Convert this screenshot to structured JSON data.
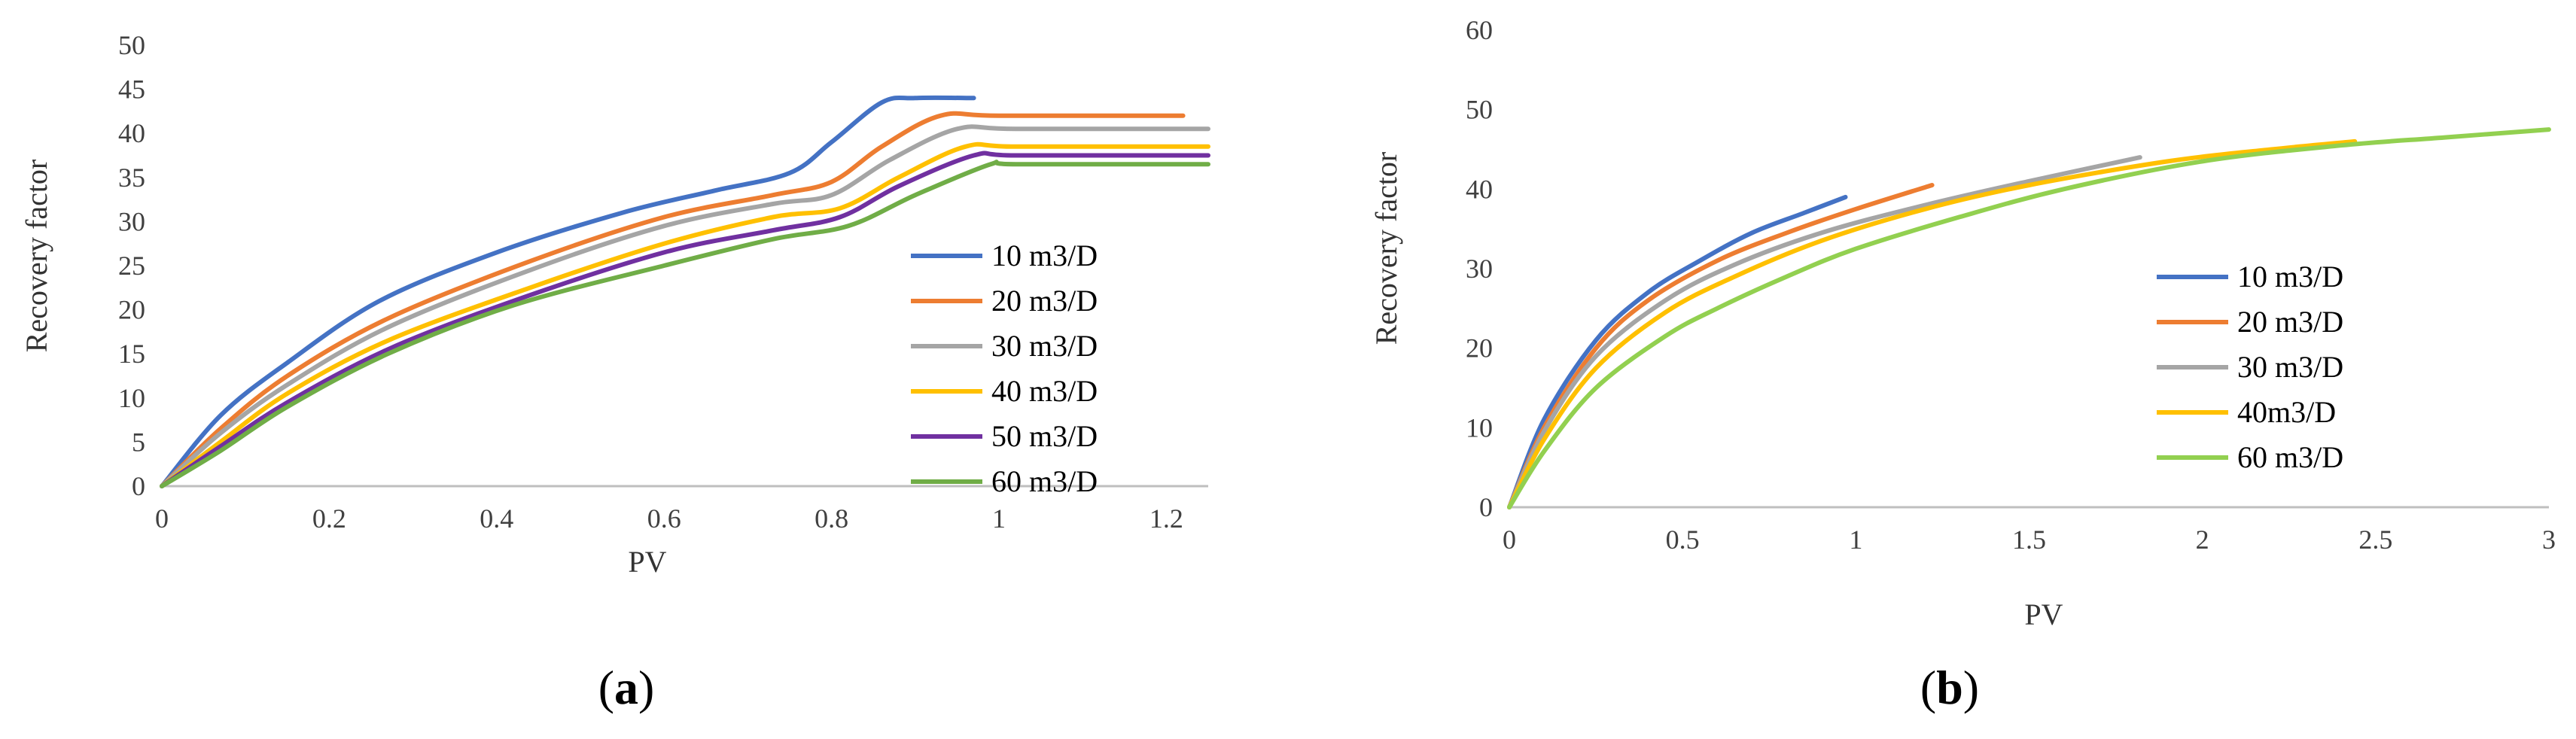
{
  "chart_data": [
    {
      "type": "line",
      "caption": "a",
      "xlabel": "PV",
      "ylabel": "Recovery factor",
      "xlim": [
        0,
        1.25
      ],
      "ylim": [
        0,
        50
      ],
      "xticks": [
        0,
        0.2,
        0.4,
        0.6,
        0.8,
        1,
        1.2
      ],
      "xtick_labels": [
        "0",
        "0.2",
        "0.4",
        "0.6",
        "0.8",
        "1",
        "1.2"
      ],
      "yticks": [
        0,
        5,
        10,
        15,
        20,
        25,
        30,
        35,
        40,
        45,
        50
      ],
      "ytick_labels": [
        "0",
        "5",
        "10",
        "15",
        "20",
        "25",
        "30",
        "35",
        "40",
        "45",
        "50"
      ],
      "legend_position": "right",
      "series": [
        {
          "name": "10 m3/D",
          "color": "#4472C4",
          "x": [
            0,
            0.07,
            0.15,
            0.26,
            0.4,
            0.55,
            0.66,
            0.75,
            0.8,
            0.86,
            0.9,
            0.97
          ],
          "y": [
            0,
            8,
            14,
            21,
            26.5,
            31,
            33.5,
            35.5,
            39,
            43.5,
            44,
            44
          ]
        },
        {
          "name": "20 m3/D",
          "color": "#ED7D31",
          "x": [
            0,
            0.07,
            0.15,
            0.27,
            0.44,
            0.6,
            0.73,
            0.8,
            0.86,
            0.93,
            1.0,
            1.22
          ],
          "y": [
            0,
            6.5,
            12.5,
            19,
            25.5,
            30.5,
            33,
            34.5,
            38.5,
            42,
            42,
            42
          ]
        },
        {
          "name": "30 m3/D",
          "color": "#A5A5A5",
          "x": [
            0,
            0.07,
            0.15,
            0.27,
            0.44,
            0.6,
            0.73,
            0.8,
            0.87,
            0.95,
            1.02,
            1.25
          ],
          "y": [
            0,
            6,
            11.5,
            18,
            24.5,
            29.5,
            32,
            33,
            37,
            40.5,
            40.5,
            40.5
          ]
        },
        {
          "name": "40 m3/D",
          "color": "#FFC000",
          "x": [
            0,
            0.07,
            0.15,
            0.27,
            0.44,
            0.6,
            0.73,
            0.81,
            0.88,
            0.96,
            1.02,
            1.25
          ],
          "y": [
            0,
            5,
            10.5,
            16.5,
            22.5,
            27.5,
            30.5,
            31.5,
            35,
            38.5,
            38.5,
            38.5
          ]
        },
        {
          "name": "50 m3/D",
          "color": "#7030A0",
          "x": [
            0,
            0.07,
            0.15,
            0.27,
            0.42,
            0.6,
            0.73,
            0.81,
            0.88,
            0.97,
            1.02,
            1.25
          ],
          "y": [
            0,
            4.5,
            9.5,
            15.5,
            21,
            26.5,
            29,
            30.5,
            34,
            37.5,
            37.5,
            37.5
          ]
        },
        {
          "name": "60 m3/D",
          "color": "#70AD47",
          "x": [
            0,
            0.07,
            0.15,
            0.27,
            0.42,
            0.6,
            0.73,
            0.82,
            0.9,
            0.99,
            1.02,
            1.25
          ],
          "y": [
            0,
            4,
            9,
            15,
            20.5,
            25,
            28,
            29.5,
            33,
            36.5,
            36.5,
            36.5
          ]
        }
      ]
    },
    {
      "type": "line",
      "caption": "b",
      "xlabel": "PV",
      "ylabel": "Recovery factor",
      "xlim": [
        0,
        3
      ],
      "ylim": [
        0,
        60
      ],
      "xticks": [
        0,
        0.5,
        1,
        1.5,
        2,
        2.5,
        3
      ],
      "xtick_labels": [
        "0",
        "0.5",
        "1",
        "1.5",
        "2",
        "2.5",
        "3"
      ],
      "yticks": [
        0,
        10,
        20,
        30,
        40,
        50,
        60
      ],
      "ytick_labels": [
        "0",
        "10",
        "20",
        "30",
        "40",
        "50",
        "60"
      ],
      "legend_position": "right",
      "series": [
        {
          "name": "10 m3/D",
          "color": "#4472C4",
          "x": [
            0,
            0.1,
            0.25,
            0.4,
            0.55,
            0.7,
            0.85,
            0.97
          ],
          "y": [
            0,
            11,
            21,
            27,
            31,
            34.5,
            37,
            39
          ]
        },
        {
          "name": "20 m3/D",
          "color": "#ED7D31",
          "x": [
            0,
            0.1,
            0.25,
            0.4,
            0.6,
            0.8,
            1.0,
            1.22
          ],
          "y": [
            0,
            10,
            20,
            26,
            31,
            34.5,
            37.5,
            40.5
          ]
        },
        {
          "name": "30 m3/D",
          "color": "#A5A5A5",
          "x": [
            0,
            0.1,
            0.25,
            0.45,
            0.65,
            0.9,
            1.2,
            1.5,
            1.82
          ],
          "y": [
            0,
            9.5,
            19,
            26,
            30.5,
            34.5,
            38,
            41,
            44
          ]
        },
        {
          "name": "40m3/D",
          "color": "#FFC000",
          "x": [
            0,
            0.1,
            0.25,
            0.45,
            0.65,
            0.9,
            1.2,
            1.5,
            1.9,
            2.2,
            2.44
          ],
          "y": [
            0,
            8.5,
            17.5,
            24.5,
            29,
            33.5,
            37.5,
            40.5,
            43.5,
            45,
            46
          ]
        },
        {
          "name": "60 m3/D",
          "color": "#92D050",
          "x": [
            0,
            0.1,
            0.25,
            0.45,
            0.6,
            0.8,
            1.0,
            1.3,
            1.6,
            2.0,
            2.4,
            2.7,
            3.0
          ],
          "y": [
            0,
            7,
            15,
            21.5,
            25,
            29,
            32.5,
            36.5,
            40,
            43.5,
            45.5,
            46.5,
            47.5
          ]
        }
      ]
    }
  ]
}
